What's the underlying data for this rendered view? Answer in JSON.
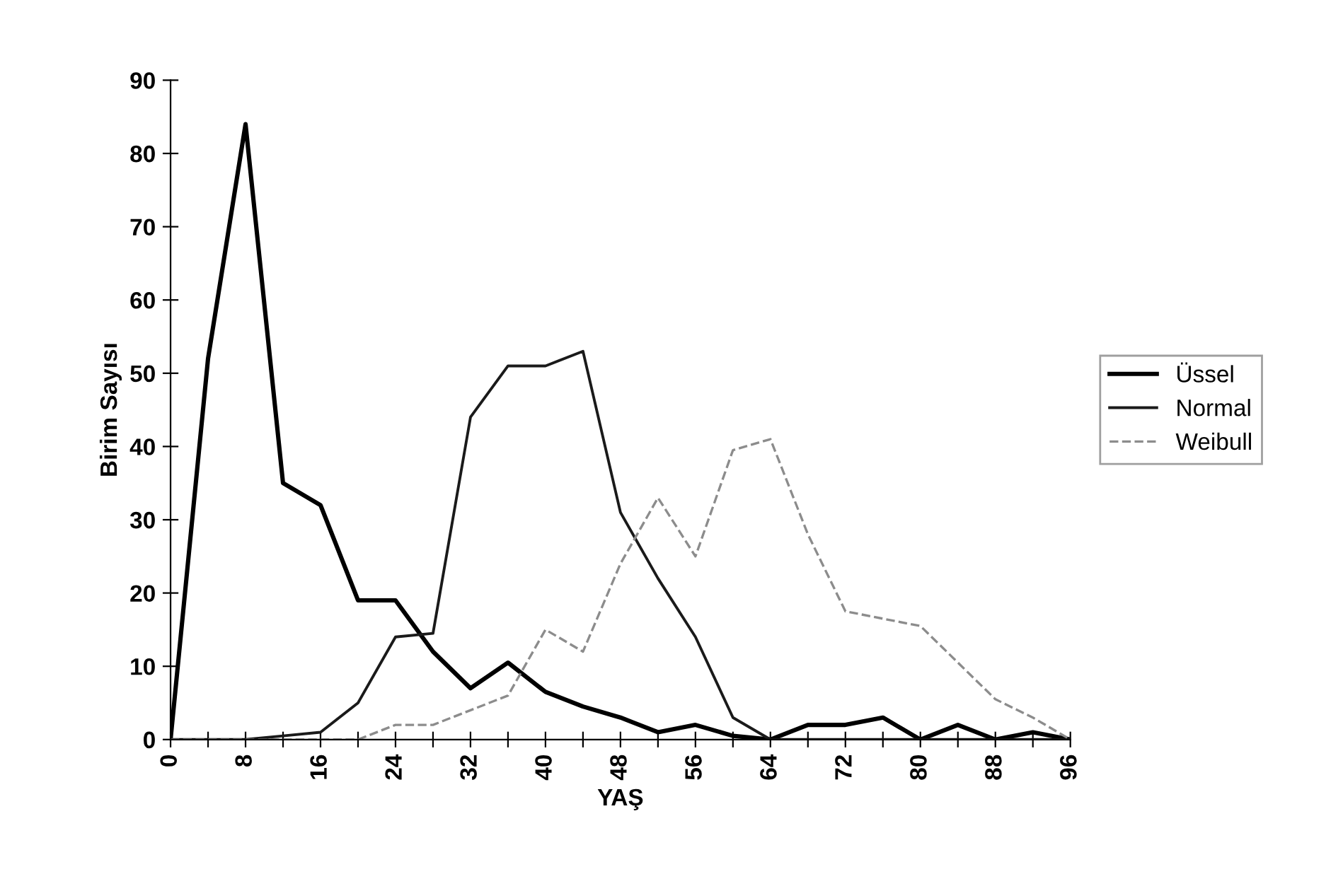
{
  "chart_data": {
    "type": "line",
    "xlabel": "YAŞ",
    "ylabel": "Birim Sayısı",
    "x": [
      0,
      4,
      8,
      12,
      16,
      20,
      24,
      28,
      32,
      36,
      40,
      44,
      48,
      52,
      56,
      60,
      64,
      68,
      72,
      76,
      80,
      84,
      88,
      92,
      96
    ],
    "series": [
      {
        "name": "Üssel",
        "color": "#000000",
        "values": [
          0,
          52,
          84,
          35,
          32,
          19,
          19,
          12,
          7,
          10.5,
          6.5,
          4.5,
          3,
          1,
          2,
          0.5,
          0,
          2,
          2,
          3,
          0,
          2,
          0,
          1,
          0
        ]
      },
      {
        "name": "Normal",
        "color": "#1a1a1a",
        "values": [
          0,
          0,
          0,
          0.5,
          1,
          5,
          14,
          14.5,
          44,
          51,
          51,
          53,
          31,
          22,
          14,
          3,
          0,
          0,
          0,
          0,
          0,
          0,
          0,
          0,
          0
        ]
      },
      {
        "name": "Weibull",
        "color": "#8c8c8c",
        "line_style": "dashed",
        "values": [
          0,
          0,
          0,
          0,
          0,
          0,
          2,
          2,
          4,
          6,
          15,
          12,
          24,
          33,
          25,
          39.5,
          41,
          28,
          17.5,
          16.5,
          15.5,
          10.5,
          5.5,
          3,
          0
        ]
      }
    ],
    "xlim": [
      0,
      96
    ],
    "ylim": [
      0,
      90
    ],
    "xticks": [
      0,
      {
        "value": 4,
        "label": null
      },
      8,
      {
        "value": 12,
        "label": null
      },
      16,
      {
        "value": 20,
        "label": null
      },
      24,
      {
        "value": 28,
        "label": null
      },
      32,
      {
        "value": 36,
        "label": null
      },
      40,
      {
        "value": 44,
        "label": null
      },
      48,
      {
        "value": 52,
        "label": null
      },
      56,
      {
        "value": 60,
        "label": null
      },
      64,
      {
        "value": 68,
        "label": null
      },
      72,
      {
        "value": 76,
        "label": null
      },
      80,
      {
        "value": 84,
        "label": null
      },
      88,
      {
        "value": 92,
        "label": null
      },
      96
    ],
    "yticks": [
      0,
      10,
      20,
      30,
      40,
      50,
      60,
      70,
      80,
      90
    ],
    "grid": false,
    "legend": "right",
    "marker": "none",
    "line_style": "solid"
  }
}
